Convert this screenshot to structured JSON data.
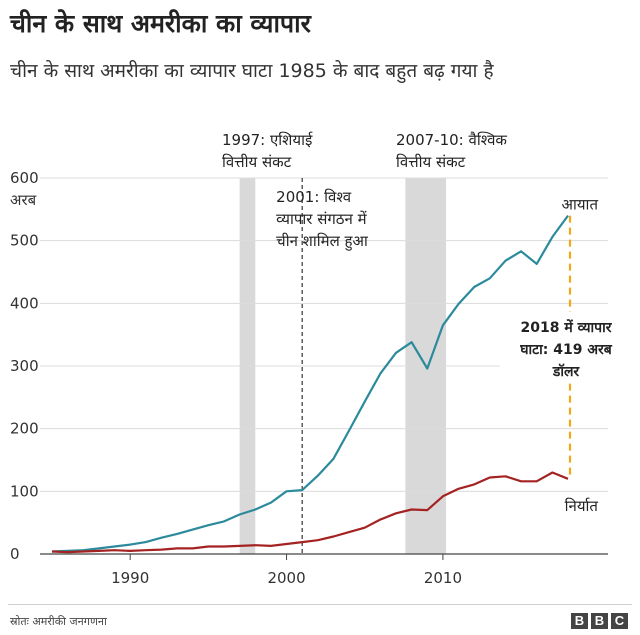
{
  "header": {
    "title": "चीन के साथ अमरीका का व्यापार",
    "subtitle": "चीन के साथ अमरीका का व्यापार घाटा 1985 के बाद बहुत बढ़ गया है"
  },
  "chart_data": {
    "type": "line",
    "x_ticks": [
      "1990",
      "2000",
      "2010"
    ],
    "y_ticks": [
      "0",
      "100",
      "200",
      "300",
      "400",
      "500",
      "600"
    ],
    "y_unit": "अरब",
    "ylim": [
      0,
      600
    ],
    "xlim": [
      1985,
      2018
    ],
    "grid": true,
    "series": [
      {
        "name": "आयात",
        "color": "#2b8a9c",
        "x": [
          1985,
          1986,
          1987,
          1988,
          1989,
          1990,
          1991,
          1992,
          1993,
          1994,
          1995,
          1996,
          1997,
          1998,
          1999,
          2000,
          2001,
          2002,
          2003,
          2004,
          2005,
          2006,
          2007,
          2008,
          2009,
          2010,
          2011,
          2012,
          2013,
          2014,
          2015,
          2016,
          2017,
          2018
        ],
        "values": [
          4,
          5,
          6,
          9,
          12,
          15,
          19,
          26,
          32,
          39,
          46,
          52,
          63,
          71,
          82,
          100,
          102,
          125,
          152,
          197,
          243,
          288,
          321,
          338,
          296,
          365,
          399,
          426,
          440,
          468,
          483,
          463,
          506,
          540
        ]
      },
      {
        "name": "निर्यात",
        "color": "#a52222",
        "x": [
          1985,
          1986,
          1987,
          1988,
          1989,
          1990,
          1991,
          1992,
          1993,
          1994,
          1995,
          1996,
          1997,
          1998,
          1999,
          2000,
          2001,
          2002,
          2003,
          2004,
          2005,
          2006,
          2007,
          2008,
          2009,
          2010,
          2011,
          2012,
          2013,
          2014,
          2015,
          2016,
          2017,
          2018
        ],
        "values": [
          4,
          3,
          4,
          5,
          6,
          5,
          6,
          7,
          9,
          9,
          12,
          12,
          13,
          14,
          13,
          16,
          19,
          22,
          28,
          35,
          42,
          55,
          65,
          71,
          70,
          92,
          104,
          111,
          122,
          124,
          116,
          116,
          130,
          120
        ]
      }
    ],
    "shaded_periods": [
      {
        "from": 1997,
        "to": 1998,
        "label_line1": "1997: एशियाई",
        "label_line2": "वित्तीय संकट"
      },
      {
        "from": 2007.6,
        "to": 2010.2,
        "label_line1": "2007-10: वैश्विक",
        "label_line2": "वित्तीय संकट"
      }
    ],
    "event_line": {
      "x": 2001,
      "lines": [
        "2001: विश्व",
        "व्यापार संगठन में",
        "चीन शामिल हुआ"
      ]
    },
    "deficit": {
      "x": 2018,
      "from": 120,
      "to": 540,
      "color": "#f0a818",
      "lines": [
        "2018 में व्यापार",
        "घाटा: 419 अरब",
        "डॉलर"
      ]
    }
  },
  "footer": {
    "source": "स्रोतः अमरीकी जनगणना",
    "logo": [
      "B",
      "B",
      "C"
    ]
  }
}
